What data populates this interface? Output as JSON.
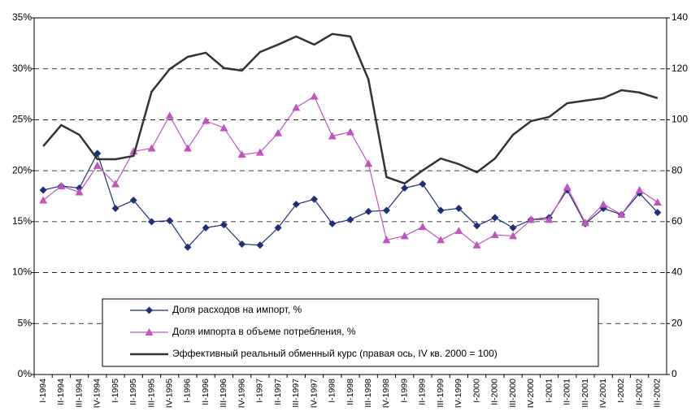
{
  "chart_data": {
    "type": "line",
    "categories": [
      "I-1994",
      "II-1994",
      "III-1994",
      "IV-1994",
      "I-1995",
      "II-1995",
      "III-1995",
      "IV-1995",
      "I-1996",
      "II-1996",
      "III-1996",
      "IV-1996",
      "I-1997",
      "II-1997",
      "III-1997",
      "IV-1997",
      "I-1998",
      "II-1998",
      "III-1998",
      "IV-1998",
      "I-1999",
      "II-1999",
      "III-1999",
      "IV-1999",
      "I-2000",
      "II-2000",
      "III-2000",
      "IV-2000",
      "I-2001",
      "II-2001",
      "III-2001",
      "IV-2001",
      "I-2002",
      "II-2002",
      "III-2002"
    ],
    "series": [
      {
        "name": "Доля расходов на импорт, %",
        "color": "#1f2f7a",
        "marker": "diamond",
        "values": [
          18.1,
          18.5,
          18.3,
          21.7,
          16.3,
          17.1,
          15.0,
          15.1,
          12.5,
          14.4,
          14.7,
          12.8,
          12.7,
          14.4,
          16.7,
          17.2,
          14.8,
          15.2,
          16.0,
          16.1,
          18.3,
          18.7,
          16.1,
          16.3,
          14.6,
          15.4,
          14.4,
          15.2,
          15.4,
          18.1,
          14.8,
          16.3,
          15.7,
          17.8,
          15.9
        ]
      },
      {
        "name": "Доля импорта в объеме потребления, %",
        "color": "#c055c0",
        "marker": "triangle",
        "values": [
          17.1,
          18.5,
          17.9,
          20.5,
          18.7,
          21.9,
          22.2,
          25.4,
          22.2,
          24.9,
          24.2,
          21.6,
          21.8,
          23.7,
          26.2,
          27.3,
          23.4,
          23.8,
          20.7,
          13.2,
          13.6,
          14.5,
          13.2,
          14.1,
          12.7,
          13.7,
          13.6,
          15.2,
          15.2,
          18.4,
          14.9,
          16.7,
          15.7,
          18.1,
          16.9
        ]
      },
      {
        "name": "Эффективный реальный обменный курс (правая ось, IV кв. 2000 = 100)",
        "color": "#333333",
        "marker": "none",
        "axis": "y2",
        "values": [
          89.6,
          97.9,
          94.1,
          84.5,
          84.5,
          85.8,
          111,
          119.9,
          124.7,
          126.3,
          120.3,
          119.3,
          126.6,
          129.5,
          132.7,
          129.5,
          133.7,
          132.7,
          115.8,
          77.5,
          75,
          80.1,
          84.8,
          82.6,
          79.4,
          84.8,
          94.1,
          99.5,
          101.1,
          106.5,
          107.5,
          108.5,
          111.6,
          110.7,
          108.5
        ]
      }
    ],
    "ylim": [
      0,
      35
    ],
    "yticks": [
      {
        "value": 0,
        "label": "0%"
      },
      {
        "value": 5,
        "label": "5%"
      },
      {
        "value": 10,
        "label": "10%"
      },
      {
        "value": 15,
        "label": "15%"
      },
      {
        "value": 20,
        "label": "20%"
      },
      {
        "value": 25,
        "label": "25%"
      },
      {
        "value": 30,
        "label": "30%"
      },
      {
        "value": 35,
        "label": "35%"
      }
    ],
    "y2lim": [
      0,
      140
    ],
    "y2ticks": [
      0,
      20,
      40,
      60,
      80,
      100,
      120,
      140
    ],
    "grid": true,
    "legend": "bottom"
  }
}
